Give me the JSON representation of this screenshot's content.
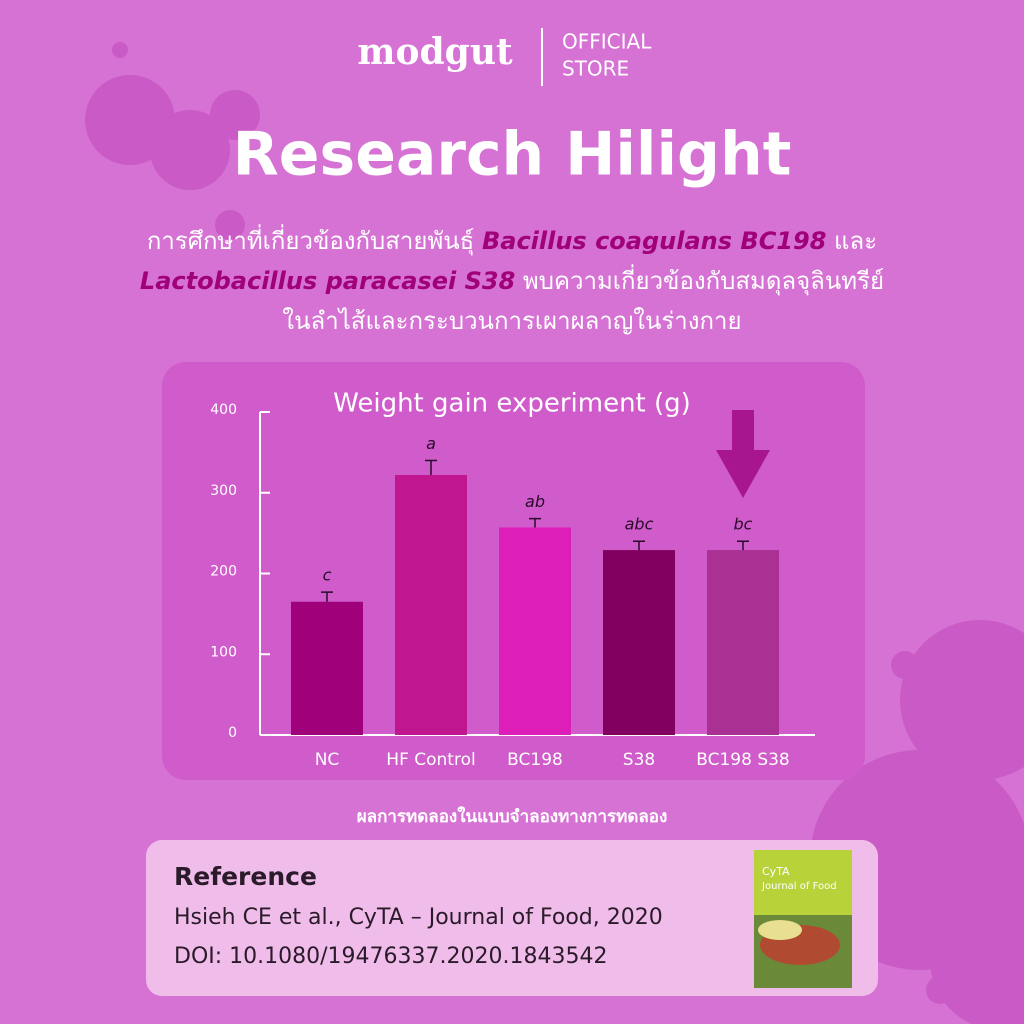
{
  "header": {
    "brand": "modgut",
    "store": [
      "OFFICIAL",
      "STORE"
    ]
  },
  "title": "Research Hilight",
  "subtitle": [
    [
      "การศึกษาที่เกี่ยวข้องกับสายพันธุ์ ",
      "Bacillus coagulans BC198",
      " และ"
    ],
    [
      "Lactobacillus paracasei S38",
      " พบความเกี่ยวข้องกับสมดุลจุลินทรีย์"
    ],
    [
      "ในลำไส้และกระบวนการเผาผลาญในร่างกาย"
    ]
  ],
  "chart_data": {
    "type": "bar",
    "title": "Weight gain experiment (g)",
    "categories": [
      "NC",
      "HF Control",
      "BC198",
      "S38",
      "BC198 S38"
    ],
    "values": [
      165,
      322,
      257,
      229,
      229
    ],
    "errors": [
      12,
      18,
      11,
      11,
      11
    ],
    "significance": [
      "c",
      "a",
      "ab",
      "abc",
      "bc"
    ],
    "colors": [
      "#a0007a",
      "#c0168f",
      "#de1eb9",
      "#820060",
      "#ab3094"
    ],
    "ylim": [
      0,
      400
    ],
    "yticks": [
      0,
      100,
      200,
      300,
      400
    ],
    "grid": false
  },
  "caption": "ผลการทดลองในแบบจำลองทางการทดลอง",
  "reference": {
    "heading": "Reference",
    "citation": "Hsieh CE et al., CyTA – Journal of Food, 2020",
    "doi": "DOI: 10.1080/19476337.2020.1843542",
    "cover": [
      "CyTA",
      "Journal of Food"
    ]
  }
}
